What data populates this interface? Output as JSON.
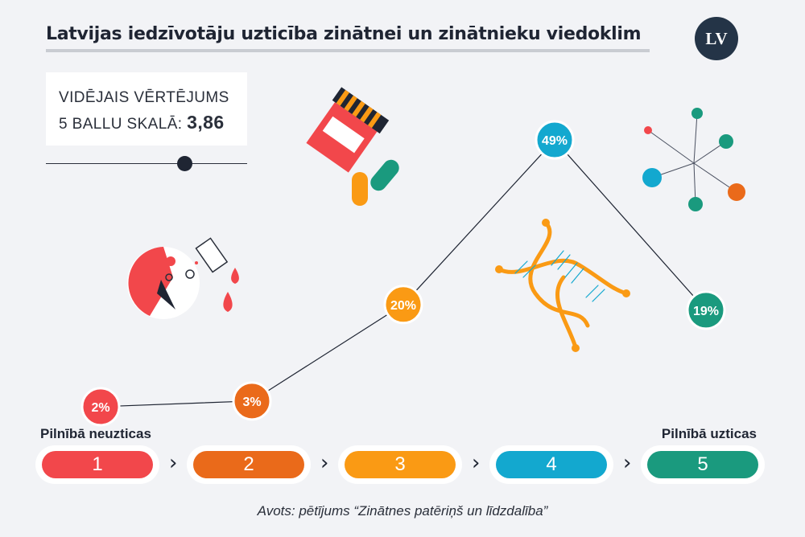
{
  "title": "Latvijas iedzīvotāju uzticība zinātnei un zinātnieku viedoklim",
  "logo_text": "LV",
  "average": {
    "line1": "VIDĒJAIS VĒRTĒJUMS",
    "line2": "5 BALLU SKALĀ:",
    "value_text": "3,86",
    "value": 3.86,
    "scale_min": 1,
    "scale_max": 5
  },
  "chart_data": {
    "type": "line",
    "categories": [
      "1",
      "2",
      "3",
      "4",
      "5"
    ],
    "values": [
      2,
      3,
      20,
      49,
      19
    ],
    "data_labels": [
      "2%",
      "3%",
      "20%",
      "49%",
      "19%"
    ],
    "colors": [
      "#f2474b",
      "#ea6a1a",
      "#fa9a14",
      "#13a8cf",
      "#1a9a7e"
    ],
    "ylim": [
      0,
      55
    ],
    "grid": false
  },
  "scale": {
    "left_label": "Pilnībā neuzticas",
    "right_label": "Pilnībā uzticas",
    "items": [
      "1",
      "2",
      "3",
      "4",
      "5"
    ],
    "separator": "›"
  },
  "source": "Avots: pētījums “Zinātnes patēriņš un līdzdalība”"
}
